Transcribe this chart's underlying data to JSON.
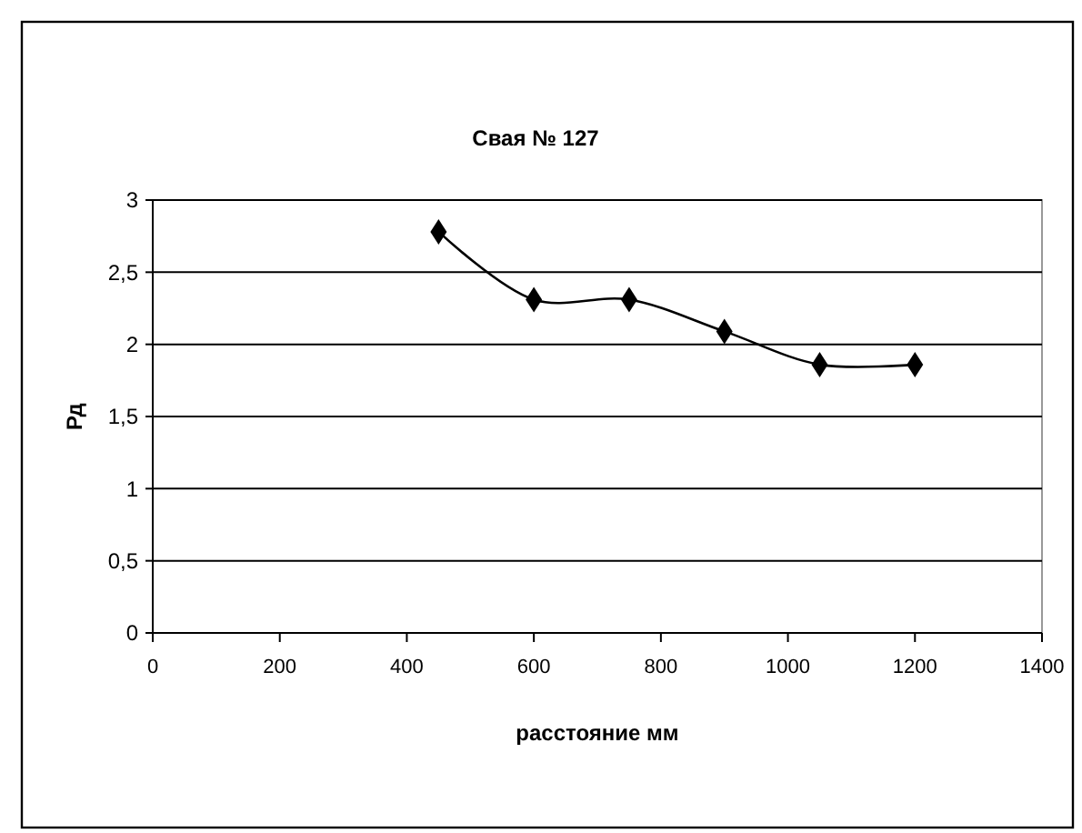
{
  "chart_data": {
    "type": "line",
    "title": "Свая № 127",
    "xlabel": "расстояние мм",
    "ylabel": "Рд",
    "x": [
      450,
      600,
      750,
      900,
      1050,
      1200
    ],
    "series": [
      {
        "color": "#000000",
        "values": [
          2.78,
          2.31,
          2.31,
          2.09,
          1.86,
          1.86
        ]
      }
    ],
    "xlim": [
      0,
      1400
    ],
    "xticks": [
      0,
      200,
      400,
      600,
      800,
      1000,
      1200,
      1400
    ],
    "ylim": [
      0,
      3
    ],
    "yticks": [
      0,
      {
        "value": 0.5,
        "label": "0,5"
      },
      1,
      {
        "value": 1.5,
        "label": "1,5"
      },
      2,
      {
        "value": 2.5,
        "label": "2,5"
      },
      3
    ],
    "grid": "y",
    "marker": "diamond",
    "line_style": "solid"
  }
}
